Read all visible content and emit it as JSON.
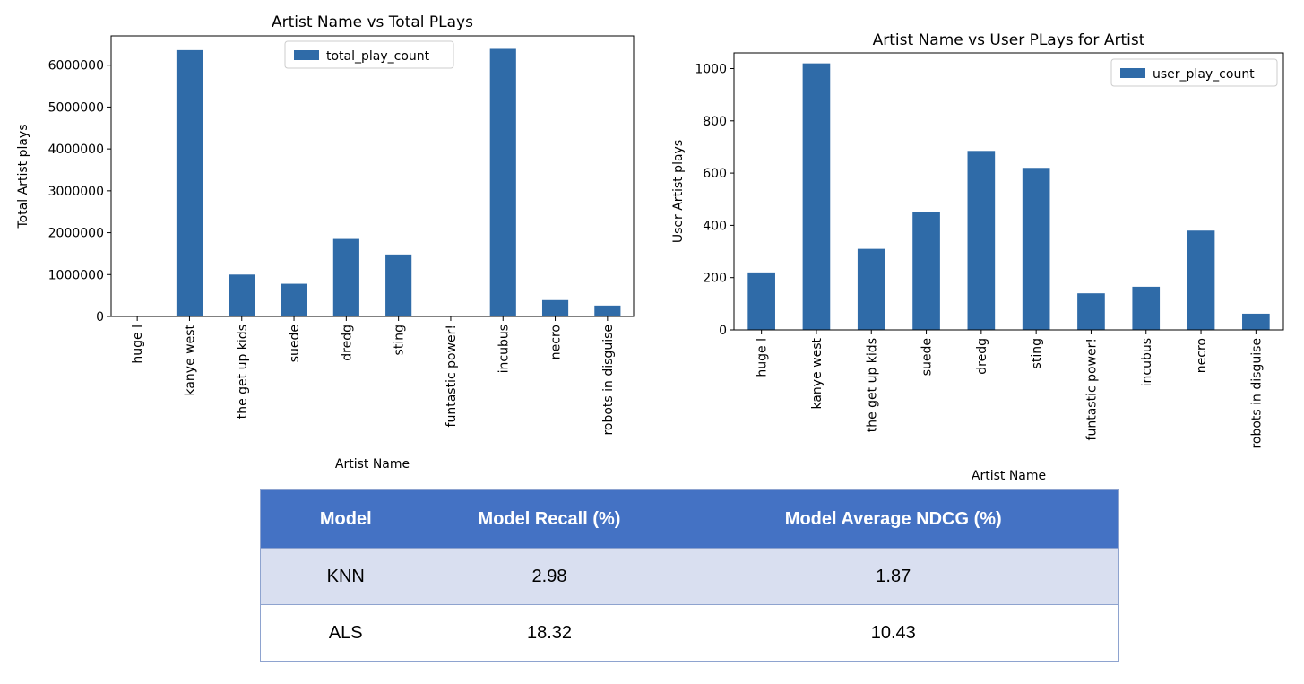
{
  "chart_data": [
    {
      "type": "bar",
      "title": "Artist Name vs Total PLays",
      "xlabel": "Artist Name",
      "ylabel": "Total Artist plays",
      "categories": [
        "huge l",
        "kanye west",
        "the get up kids",
        "suede",
        "dredg",
        "sting",
        "funtastic power!",
        "incubus",
        "necro",
        "robots in disguise"
      ],
      "series": [
        {
          "name": "total_play_count",
          "values": [
            20000,
            6360000,
            1000000,
            780000,
            1850000,
            1480000,
            20000,
            6390000,
            390000,
            260000
          ]
        }
      ],
      "ylim": [
        0,
        6700000
      ],
      "yticks": [
        0,
        1000000,
        2000000,
        3000000,
        4000000,
        5000000,
        6000000
      ],
      "legend_position": "top-center",
      "grid": false,
      "bar_color": "#2f6ba8"
    },
    {
      "type": "bar",
      "title": "Artist Name vs User PLays for Artist",
      "xlabel": "Artist Name",
      "ylabel": "User Artist plays",
      "categories": [
        "huge l",
        "kanye west",
        "the get up kids",
        "suede",
        "dredg",
        "sting",
        "funtastic power!",
        "incubus",
        "necro",
        "robots in disguise"
      ],
      "series": [
        {
          "name": "user_play_count",
          "values": [
            220,
            1020,
            310,
            450,
            685,
            620,
            140,
            165,
            380,
            62
          ]
        }
      ],
      "ylim": [
        0,
        1060
      ],
      "yticks": [
        0,
        200,
        400,
        600,
        800,
        1000
      ],
      "legend_position": "top-right",
      "grid": false,
      "bar_color": "#2f6ba8"
    }
  ],
  "table": {
    "headers": [
      "Model",
      "Model Recall (%)",
      "Model Average NDCG (%)"
    ],
    "rows": [
      [
        "KNN",
        "2.98",
        "1.87"
      ],
      [
        "ALS",
        "18.32",
        "10.43"
      ]
    ],
    "header_color": "#4472c4",
    "row_band_color": "#d9dff0"
  }
}
